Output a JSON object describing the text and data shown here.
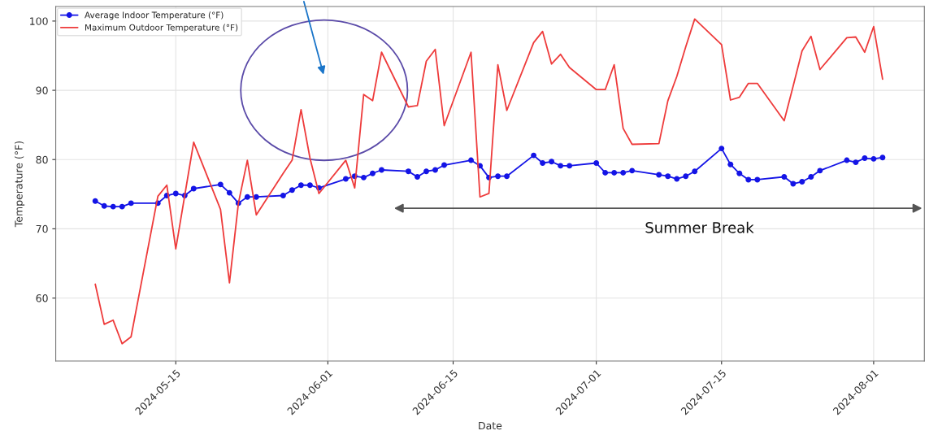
{
  "chart_data": {
    "type": "line",
    "xlabel": "Date",
    "ylabel": "Temperature (°F)",
    "annotations": [
      "Summer Break"
    ],
    "x": [
      "2024-05-06",
      "2024-05-07",
      "2024-05-08",
      "2024-05-09",
      "2024-05-10",
      "2024-05-13",
      "2024-05-14",
      "2024-05-15",
      "2024-05-16",
      "2024-05-17",
      "2024-05-20",
      "2024-05-21",
      "2024-05-22",
      "2024-05-23",
      "2024-05-24",
      "2024-05-27",
      "2024-05-28",
      "2024-05-29",
      "2024-05-30",
      "2024-05-31",
      "2024-06-03",
      "2024-06-04",
      "2024-06-05",
      "2024-06-06",
      "2024-06-07",
      "2024-06-10",
      "2024-06-11",
      "2024-06-12",
      "2024-06-13",
      "2024-06-14",
      "2024-06-17",
      "2024-06-18",
      "2024-06-19",
      "2024-06-20",
      "2024-06-21",
      "2024-06-24",
      "2024-06-25",
      "2024-06-26",
      "2024-06-27",
      "2024-06-28",
      "2024-07-01",
      "2024-07-02",
      "2024-07-03",
      "2024-07-04",
      "2024-07-05",
      "2024-07-08",
      "2024-07-09",
      "2024-07-10",
      "2024-07-11",
      "2024-07-12",
      "2024-07-15",
      "2024-07-16",
      "2024-07-17",
      "2024-07-18",
      "2024-07-19",
      "2024-07-22",
      "2024-07-23",
      "2024-07-24",
      "2024-07-25",
      "2024-07-26",
      "2024-07-29",
      "2024-07-30",
      "2024-07-31",
      "2024-08-01",
      "2024-08-02"
    ],
    "series": [
      {
        "name": "Average Indoor Temperature (°F)",
        "color": "#1414e6",
        "marker": "circle",
        "values": [
          74.0,
          73.3,
          73.2,
          73.2,
          73.7,
          73.7,
          74.8,
          75.1,
          74.8,
          75.8,
          76.4,
          75.2,
          73.7,
          74.6,
          74.6,
          74.8,
          75.6,
          76.3,
          76.3,
          75.9,
          77.2,
          77.6,
          77.4,
          78.0,
          78.5,
          78.3,
          77.5,
          78.3,
          78.5,
          79.2,
          79.9,
          79.1,
          77.4,
          77.6,
          77.6,
          80.6,
          79.5,
          79.7,
          79.1,
          79.1,
          79.5,
          78.1,
          78.1,
          78.1,
          78.4,
          77.8,
          77.6,
          77.2,
          77.6,
          78.3,
          81.6,
          79.3,
          78.0,
          77.1,
          77.1,
          77.5,
          76.5,
          76.8,
          77.5,
          78.4,
          79.9,
          79.6,
          80.2,
          80.1,
          80.3
        ]
      },
      {
        "name": "Maximum Outdoor Temperature (°F)",
        "color": "#ee3b3b",
        "marker": "none",
        "values": [
          62.0,
          56.2,
          56.8,
          53.4,
          54.4,
          74.7,
          76.3,
          67.1,
          74.8,
          82.5,
          72.8,
          62.2,
          73.7,
          79.9,
          72.0,
          78.0,
          79.9,
          87.2,
          80.2,
          75.1,
          79.9,
          75.9,
          89.4,
          88.5,
          95.5,
          87.6,
          87.8,
          94.2,
          95.9,
          84.9,
          95.5,
          74.6,
          75.1,
          93.7,
          87.1,
          96.9,
          98.5,
          93.8,
          95.2,
          93.3,
          90.1,
          90.1,
          93.7,
          84.5,
          82.2,
          82.3,
          88.5,
          92.0,
          96.3,
          100.3,
          96.6,
          88.6,
          89.0,
          91.0,
          91.0,
          85.6,
          90.6,
          95.7,
          97.8,
          93.0,
          97.6,
          97.7,
          95.5,
          99.2,
          91.6
        ]
      }
    ],
    "xlim": [
      "2024-05-01T14:00",
      "2024-08-06T16:00"
    ],
    "xticks": [
      "2024-05-15",
      "2024-06-01",
      "2024-06-15",
      "2024-07-01",
      "2024-07-15",
      "2024-08-01"
    ],
    "ylim": [
      50.9,
      102.1
    ],
    "yticks": [
      60,
      70,
      80,
      90,
      100
    ],
    "line_style": "solid",
    "grid": true,
    "legend": "top left"
  }
}
